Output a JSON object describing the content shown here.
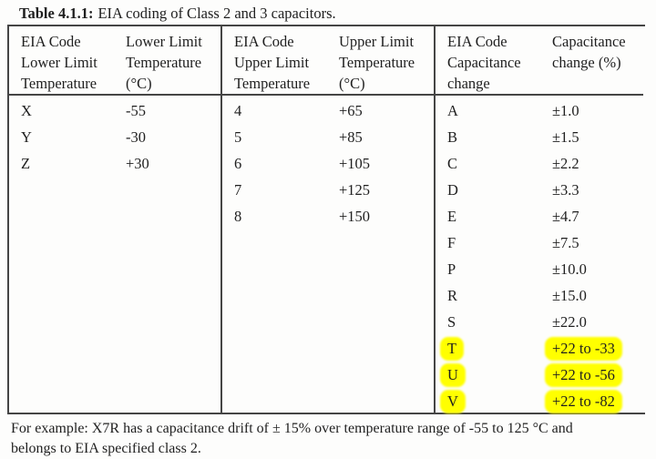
{
  "caption": {
    "label": "Table 4.1.1:",
    "text": "EIA coding of Class 2 and 3 capacitors."
  },
  "table": {
    "group1": {
      "code_header": "EIA Code\nLower Limit\nTemperature",
      "value_header": "Lower Limit\nTemperature\n(°C)",
      "rows": [
        [
          "X",
          "-55"
        ],
        [
          "Y",
          "-30"
        ],
        [
          "Z",
          "+30"
        ]
      ]
    },
    "group2": {
      "code_header": "EIA Code\nUpper Limit\nTemperature",
      "value_header": "Upper Limit\nTemperature\n(°C)",
      "rows": [
        [
          "4",
          "+65"
        ],
        [
          "5",
          "+85"
        ],
        [
          "6",
          "+105"
        ],
        [
          "7",
          "+125"
        ],
        [
          "8",
          "+150"
        ]
      ]
    },
    "group3": {
      "code_header": "EIA Code\nCapacitance\nchange",
      "value_header": "Capacitance\nchange (%)",
      "rows": [
        [
          "A",
          "±1.0"
        ],
        [
          "B",
          "±1.5"
        ],
        [
          "C",
          "±2.2"
        ],
        [
          "D",
          "±3.3"
        ],
        [
          "E",
          "±4.7"
        ],
        [
          "F",
          "±7.5"
        ],
        [
          "P",
          "±10.0"
        ],
        [
          "R",
          "±15.0"
        ],
        [
          "S",
          "±22.0"
        ],
        [
          "T",
          "+22 to -33"
        ],
        [
          "U",
          "+22 to -56"
        ],
        [
          "V",
          "+22 to -82"
        ]
      ],
      "highlighted_codes": [
        "T",
        "U",
        "V"
      ]
    }
  },
  "footnote": "For example: X7R has a capacitance drift of ± 15% over temperature range of -55 to 125 °C and\nbelongs to EIA specified class 2.",
  "colors": {
    "text": "#1f1f1f",
    "line": "#454545",
    "highlight": "#ffff00",
    "paper": "#fdfdfc"
  }
}
